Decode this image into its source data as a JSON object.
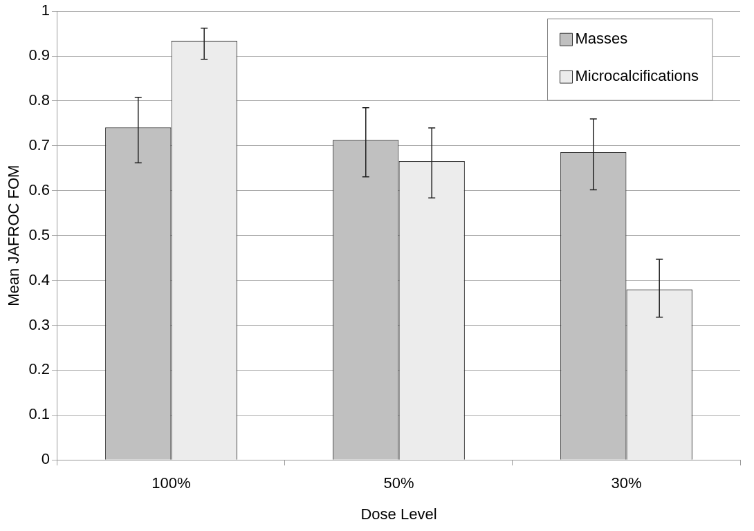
{
  "chart_data": {
    "type": "bar",
    "xlabel": "Dose Level",
    "ylabel": "Mean JAFROC FOM",
    "categories": [
      "100%",
      "50%",
      "30%"
    ],
    "series": [
      {
        "name": "Masses",
        "color": "#c0c0c0",
        "values": [
          0.741,
          0.713,
          0.686
        ],
        "errors": [
          [
            0.662,
            0.808
          ],
          [
            0.631,
            0.785
          ],
          [
            0.602,
            0.76
          ]
        ]
      },
      {
        "name": "Microcalcifications",
        "color": "#ececec",
        "values": [
          0.934,
          0.666,
          0.38
        ],
        "errors": [
          [
            0.893,
            0.962
          ],
          [
            0.584,
            0.74
          ],
          [
            0.318,
            0.447
          ]
        ]
      }
    ],
    "ylim": [
      0,
      1
    ],
    "yticks": [
      0,
      0.1,
      0.2,
      0.3,
      0.4,
      0.5,
      0.6,
      0.7,
      0.8,
      0.9,
      1
    ],
    "grid": "y",
    "legend": "top right"
  }
}
